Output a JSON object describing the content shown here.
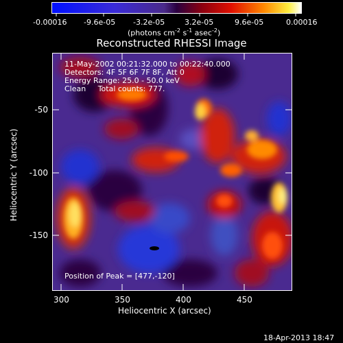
{
  "colorbar": {
    "ticks": [
      "-0.00016",
      "-9.6e-05",
      "-3.2e-05",
      "3.2e-05",
      "9.6e-05",
      "0.00016"
    ],
    "unit_label": "(photons cm",
    "unit_exp1": "-2",
    "unit_mid": " s",
    "unit_exp2": "-1",
    "unit_end": " asec",
    "unit_exp3": "-2",
    "unit_close": ")"
  },
  "title": "Reconstructed RHESSI Image",
  "info": {
    "time": "11-May-2002 00:21:32.000 to 00:22:40.000",
    "detectors": "Detectors: 4F 5F 6F 7F 8F, Att 0",
    "energy": "Energy Range: 25.0 - 50.0 keV",
    "clean": "Clean     Total counts: 777.",
    "peak": "Position of Peak = [477,-120]"
  },
  "axes": {
    "xlabel": "Heliocentric X (arcsec)",
    "ylabel": "Heliocentric Y (arcsec)",
    "xticks": [
      "300",
      "350",
      "400",
      "450"
    ],
    "yticks": [
      "-50",
      "-100",
      "-150"
    ]
  },
  "footer": {
    "timestamp": "18-Apr-2013 18:47"
  },
  "colors": {
    "bg": "#000000",
    "frame": "#ffffff"
  }
}
